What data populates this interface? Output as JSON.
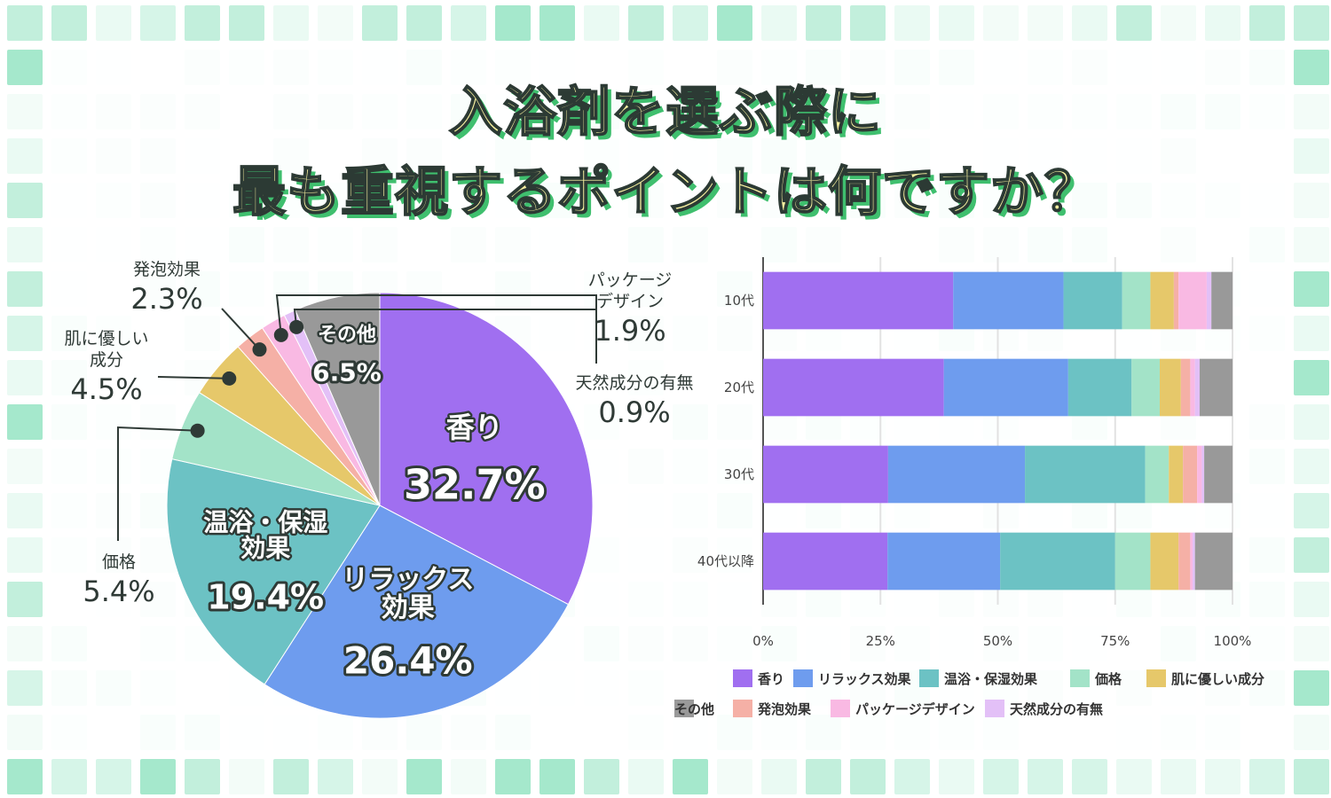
{
  "title": {
    "line1": "入浴剤を選ぶ際に",
    "line2": "最も重視するポイントは何ですか？"
  },
  "colors": {
    "香り": "#a06ff0",
    "リラックス効果": "#6e9cee",
    "温浴・保湿効果": "#6cc2c4",
    "価格": "#a3e3c8",
    "肌に優しい成分": "#e6c86a",
    "発泡効果": "#f5b0a6",
    "パッケージデザイン": "#f9b9e3",
    "天然成分の有無": "#e3c0f7",
    "その他": "#999999"
  },
  "chart_data": [
    {
      "type": "pie",
      "slices": [
        {
          "name": "香り",
          "value": 32.7,
          "label": "32.7%"
        },
        {
          "name": "リラックス効果",
          "value": 26.4,
          "label": "26.4%"
        },
        {
          "name": "温浴・保湿効果",
          "value": 19.4,
          "label": "19.4%"
        },
        {
          "name": "価格",
          "value": 5.4,
          "label": "5.4%"
        },
        {
          "name": "肌に優しい成分",
          "value": 4.5,
          "label": "4.5%"
        },
        {
          "name": "発泡効果",
          "value": 2.3,
          "label": "2.3%"
        },
        {
          "name": "パッケージデザイン",
          "value": 1.9,
          "label": "1.9%"
        },
        {
          "name": "天然成分の有無",
          "value": 0.9,
          "label": "0.9%"
        },
        {
          "name": "その他",
          "value": 6.5,
          "label": "6.5%"
        }
      ],
      "inside_labels": [
        {
          "slice": "香り",
          "lines": [
            "香り"
          ]
        },
        {
          "slice": "リラックス効果",
          "lines": [
            "リラックス",
            "効果"
          ]
        },
        {
          "slice": "温浴・保湿効果",
          "lines": [
            "温浴・保湿",
            "効果"
          ]
        },
        {
          "slice": "その他",
          "lines": [
            "その他"
          ]
        }
      ],
      "callout_labels": [
        {
          "slice": "発泡効果",
          "lines": [
            "発泡効果"
          ]
        },
        {
          "slice": "肌に優しい成分",
          "lines": [
            "肌に優しい",
            "成分"
          ]
        },
        {
          "slice": "価格",
          "lines": [
            "価格"
          ]
        },
        {
          "slice": "パッケージデザイン",
          "lines": [
            "パッケージ",
            "デザイン"
          ]
        },
        {
          "slice": "天然成分の有無",
          "lines": [
            "天然成分の有無"
          ]
        }
      ]
    },
    {
      "type": "bar",
      "orientation": "horizontal",
      "stacked": "percent",
      "categories": [
        "10代",
        "20代",
        "30代",
        "40代以降"
      ],
      "series": [
        {
          "name": "香り",
          "values": [
            40.5,
            38.5,
            26.5,
            26.5
          ]
        },
        {
          "name": "リラックス効果",
          "values": [
            23.5,
            26.5,
            29.0,
            24.0
          ]
        },
        {
          "name": "温浴・保湿効果",
          "values": [
            12.5,
            13.5,
            25.5,
            24.5
          ]
        },
        {
          "name": "価格",
          "values": [
            6.0,
            6.0,
            5.0,
            7.5
          ]
        },
        {
          "name": "肌に優しい成分",
          "values": [
            5.0,
            4.5,
            3.0,
            6.0
          ]
        },
        {
          "name": "発泡効果",
          "values": [
            1.0,
            2.0,
            3.0,
            2.5
          ]
        },
        {
          "name": "パッケージデザイン",
          "values": [
            6.0,
            1.0,
            1.0,
            0.5
          ]
        },
        {
          "name": "天然成分の有無",
          "values": [
            1.0,
            1.0,
            0.5,
            0.5
          ]
        },
        {
          "name": "その他",
          "values": [
            4.5,
            7.0,
            6.0,
            8.0
          ]
        }
      ],
      "xticks": [
        "0%",
        "25%",
        "50%",
        "75%",
        "100%"
      ],
      "xlim": [
        0,
        100
      ],
      "grid": true,
      "legend": "bottom"
    }
  ]
}
